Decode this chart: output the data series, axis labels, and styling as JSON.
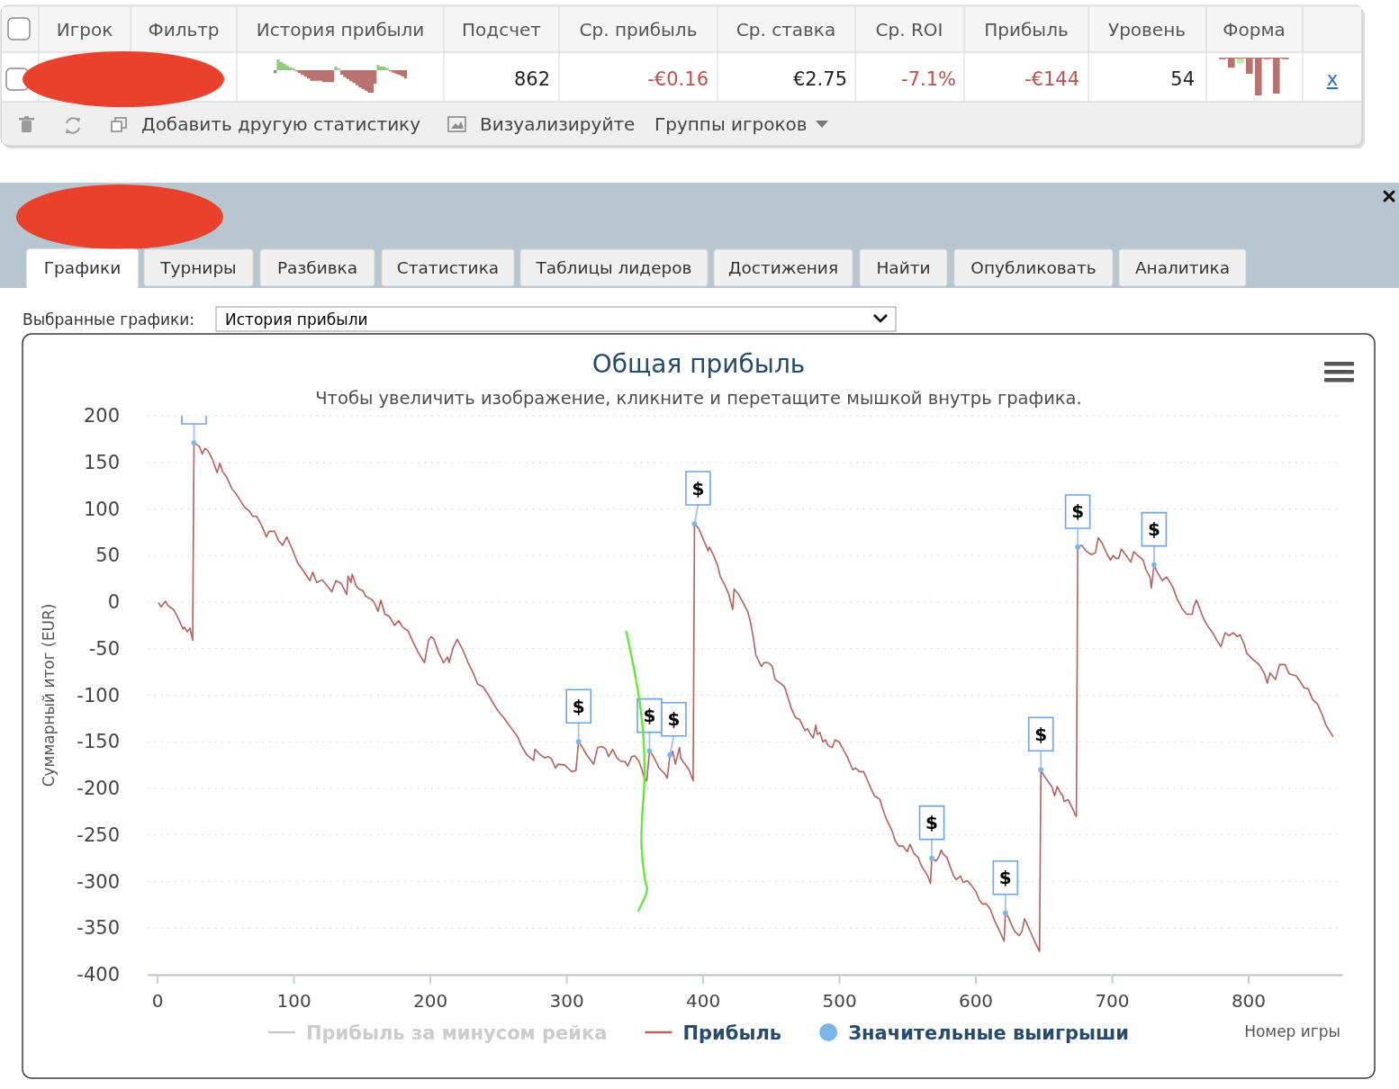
{
  "chart_data": [
    {
      "type": "other",
      "annotations": [
        "Игрок",
        "Фильтр",
        "История прибыли",
        "Подсчет",
        "Ср. прибыль",
        "Ср. ставка",
        "Ср. ROI",
        "Прибыль",
        "Уровень",
        "Форма",
        "862",
        "-€0.16",
        "€2.75",
        "-7.1%",
        "-€144",
        "54",
        "x",
        "Добавить другую статистику",
        "Визуализируйте",
        "Группы игроков"
      ]
    },
    {
      "type": "other",
      "annotations": [
        "Графики",
        "Турниры",
        "Разбивка",
        "Статистика",
        "Таблицы лидеров",
        "Достижения",
        "Найти",
        "Опубликовать",
        "Аналитика",
        "Выбранные графики:",
        "История прибыли"
      ]
    },
    {
      "type": "line",
      "title": "Общая прибыль",
      "subtitle": "Чтобы увеличить изображение, кликните и перетащите мышкой внутрь графика.",
      "xlabel": "Номер игры",
      "ylabel": "Суммарный итог (EUR)",
      "xlim": [
        -7,
        869
      ],
      "xticks": [
        0,
        100,
        200,
        300,
        400,
        500,
        600,
        700,
        800
      ],
      "ylim": [
        -400,
        200
      ],
      "yticks": [
        -400,
        -350,
        -300,
        -250,
        -200,
        -150,
        -100,
        -50,
        0,
        50,
        100,
        150,
        200
      ],
      "grid": "y",
      "legend": "bottom",
      "series": [
        {
          "name": "Прибыль за минусом рейка",
          "type": "line",
          "color": "#cccccc"
        },
        {
          "name": "Прибыль",
          "type": "line",
          "color": "#b5615e",
          "x": [
            1,
            3,
            6,
            8,
            12,
            15,
            19,
            20,
            22,
            24,
            26,
            27,
            29,
            31,
            33,
            35,
            37,
            40,
            44,
            46,
            48,
            51,
            55,
            57,
            64,
            68,
            70,
            73,
            77,
            80,
            82,
            86,
            89,
            92,
            95,
            99,
            103,
            107,
            112,
            114,
            117,
            121,
            125,
            128,
            131,
            135,
            139,
            140,
            142,
            143,
            146,
            148,
            151,
            153,
            157,
            159,
            162,
            164,
            167,
            170,
            174,
            177,
            180,
            184,
            187,
            191,
            196,
            199,
            201,
            203,
            206,
            210,
            213,
            214,
            217,
            220,
            224,
            228,
            232,
            235,
            239,
            243,
            247,
            250,
            254,
            258,
            262,
            264,
            267,
            271,
            276,
            277,
            281,
            284,
            287,
            289,
            292,
            294,
            299,
            301,
            304,
            307,
            309,
            311,
            315,
            320,
            323,
            326,
            329,
            331,
            334,
            337,
            340,
            343,
            345,
            348,
            350,
            353,
            355,
            357,
            359,
            361,
            364,
            368,
            372,
            374,
            376,
            378,
            380,
            383,
            384,
            387,
            390,
            393,
            394,
            397,
            400,
            404,
            405,
            408,
            411,
            413,
            416,
            419,
            422,
            423,
            426,
            429,
            433,
            435,
            437,
            439,
            443,
            445,
            448,
            451,
            453,
            457,
            460,
            462,
            465,
            468,
            471,
            473,
            475,
            477,
            479,
            481,
            483,
            484,
            486,
            488,
            490,
            492,
            495,
            497,
            500,
            503,
            506,
            510,
            512,
            515,
            518,
            521,
            524,
            526,
            530,
            532,
            535,
            539,
            541,
            544,
            547,
            550,
            552,
            555,
            558,
            560,
            565,
            567,
            568,
            571,
            573,
            575,
            576,
            579,
            581,
            584,
            586,
            589,
            591,
            594,
            597,
            600,
            603,
            605,
            608,
            611,
            614,
            618,
            621,
            622,
            624,
            627,
            629,
            632,
            634,
            636,
            638,
            641,
            644,
            647,
            648,
            650,
            653,
            656,
            658,
            660,
            662,
            664,
            665,
            668,
            670,
            672,
            673,
            674,
            675,
            678,
            681,
            685,
            688,
            690,
            693,
            696,
            699,
            701,
            703,
            705,
            707,
            710,
            712,
            714,
            716,
            720,
            723,
            725,
            728,
            729,
            731,
            733,
            737,
            740,
            742,
            745,
            748,
            752,
            755,
            759,
            760,
            762,
            764,
            767,
            770,
            774,
            777,
            780,
            783,
            786,
            789,
            792,
            794,
            797,
            799,
            803,
            808,
            812,
            814,
            816,
            820,
            823,
            827,
            830,
            835,
            838,
            841,
            844,
            847,
            851,
            854,
            857,
            862
          ],
          "values": [
            -1,
            -5,
            1,
            -4,
            -8,
            -16,
            -29,
            -27,
            -32,
            -28,
            -41,
            171,
            169,
            167,
            159,
            165,
            163,
            155,
            139,
            149,
            140,
            134,
            121,
            118,
            102,
            97,
            92,
            92,
            81,
            70,
            76,
            76,
            66,
            61,
            70,
            57,
            42,
            34,
            23,
            32,
            21,
            24,
            17,
            11,
            23,
            20,
            8,
            28,
            21,
            30,
            17,
            14,
            12,
            6,
            3,
            0,
            -10,
            2,
            -13,
            -15,
            -25,
            -20,
            -27,
            -31,
            -41,
            -53,
            -65,
            -41,
            -37,
            -40,
            -53,
            -65,
            -59,
            -65,
            -49,
            -40,
            -51,
            -65,
            -77,
            -88,
            -91,
            -100,
            -110,
            -117,
            -124,
            -132,
            -140,
            -144,
            -154,
            -164,
            -170,
            -158,
            -164,
            -167,
            -166,
            -168,
            -178,
            -174,
            -175,
            -178,
            -182,
            -181,
            -150,
            -154,
            -164,
            -174,
            -156,
            -155,
            -158,
            -166,
            -158,
            -167,
            -171,
            -171,
            -176,
            -166,
            -165,
            -170,
            -178,
            -188,
            -192,
            -160,
            -166,
            -178,
            -184,
            -189,
            -164,
            -160,
            -174,
            -156,
            -168,
            -174,
            -180,
            -192,
            84,
            79,
            69,
            55,
            59,
            50,
            39,
            27,
            19,
            9,
            -8,
            14,
            9,
            1,
            -10,
            -21,
            -37,
            -57,
            -69,
            -65,
            -65,
            -69,
            -83,
            -87,
            -91,
            -100,
            -114,
            -124,
            -126,
            -132,
            -138,
            -136,
            -142,
            -146,
            -132,
            -142,
            -140,
            -150,
            -148,
            -154,
            -156,
            -148,
            -150,
            -158,
            -166,
            -180,
            -178,
            -182,
            -182,
            -192,
            -202,
            -208,
            -212,
            -222,
            -234,
            -246,
            -256,
            -262,
            -262,
            -268,
            -260,
            -270,
            -274,
            -282,
            -294,
            -302,
            -275,
            -278,
            -274,
            -266,
            -270,
            -274,
            -282,
            -294,
            -298,
            -294,
            -301,
            -299,
            -304,
            -310,
            -320,
            -324,
            -324,
            -330,
            -342,
            -354,
            -364,
            -334,
            -338,
            -348,
            -354,
            -358,
            -354,
            -340,
            -346,
            -356,
            -366,
            -375,
            -180,
            -186,
            -192,
            -198,
            -208,
            -198,
            -204,
            -208,
            -214,
            -212,
            -218,
            -224,
            -228,
            -230,
            59,
            61,
            55,
            51,
            53,
            69,
            63,
            53,
            45,
            50,
            47,
            47,
            57,
            51,
            47,
            43,
            54,
            49,
            45,
            35,
            27,
            15,
            40,
            33,
            23,
            27,
            23,
            15,
            3,
            -8,
            -13,
            -13,
            -5,
            2,
            -5,
            -17,
            -25,
            -33,
            -41,
            -48,
            -33,
            -36,
            -33,
            -37,
            -35,
            -45,
            -55,
            -61,
            -67,
            -77,
            -87,
            -76,
            -83,
            -67,
            -67,
            -77,
            -79,
            -85,
            -92,
            -93,
            -104,
            -110,
            -120,
            -132,
            -144
          ]
        },
        {
          "name": "Значительные выигрыши",
          "type": "scatter",
          "color": "#7cb5ec",
          "marker": "circle",
          "x": [
            27,
            309,
            361,
            376,
            394,
            568,
            622,
            648,
            675,
            731
          ],
          "values": [
            171,
            -150,
            -160,
            -164,
            84,
            -275,
            -334,
            -180,
            59,
            40
          ],
          "value_labels": [
            null,
            "$",
            "$",
            "$",
            "$",
            "$",
            "$",
            "$",
            "$",
            "$"
          ]
        }
      ]
    }
  ]
}
